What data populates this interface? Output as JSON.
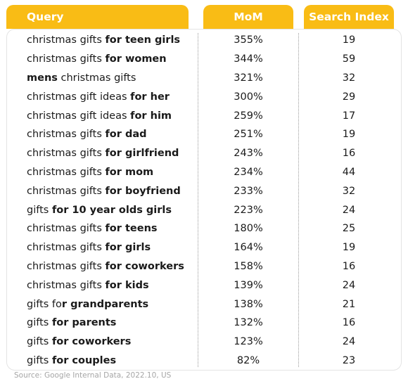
{
  "chart_data": {
    "type": "table",
    "columns": [
      "Query",
      "MoM",
      "Search Index"
    ],
    "rows": [
      {
        "query": [
          {
            "t": "christmas gifts ",
            "b": false
          },
          {
            "t": "for teen girls",
            "b": true
          }
        ],
        "mom": "355%",
        "index": "19"
      },
      {
        "query": [
          {
            "t": "christmas gifts ",
            "b": false
          },
          {
            "t": "for women",
            "b": true
          }
        ],
        "mom": "344%",
        "index": "59"
      },
      {
        "query": [
          {
            "t": "mens",
            "b": true
          },
          {
            "t": " christmas gifts",
            "b": false
          }
        ],
        "mom": "321%",
        "index": "32"
      },
      {
        "query": [
          {
            "t": "christmas gift ideas ",
            "b": false
          },
          {
            "t": "for her",
            "b": true
          }
        ],
        "mom": "300%",
        "index": "29"
      },
      {
        "query": [
          {
            "t": "christmas gift ideas ",
            "b": false
          },
          {
            "t": "for him",
            "b": true
          }
        ],
        "mom": "259%",
        "index": "17"
      },
      {
        "query": [
          {
            "t": "christmas gifts ",
            "b": false
          },
          {
            "t": "for dad",
            "b": true
          }
        ],
        "mom": "251%",
        "index": "19"
      },
      {
        "query": [
          {
            "t": "christmas gifts ",
            "b": false
          },
          {
            "t": "for girlfriend",
            "b": true
          }
        ],
        "mom": "243%",
        "index": "16"
      },
      {
        "query": [
          {
            "t": "christmas gifts ",
            "b": false
          },
          {
            "t": "for mom",
            "b": true
          }
        ],
        "mom": "234%",
        "index": "44"
      },
      {
        "query": [
          {
            "t": "christmas gifts ",
            "b": false
          },
          {
            "t": "for boyfriend",
            "b": true
          }
        ],
        "mom": "233%",
        "index": "32"
      },
      {
        "query": [
          {
            "t": "gifts ",
            "b": false
          },
          {
            "t": "for 10 year olds girls",
            "b": true
          }
        ],
        "mom": "223%",
        "index": "24"
      },
      {
        "query": [
          {
            "t": "christmas gifts ",
            "b": false
          },
          {
            "t": "for teens",
            "b": true
          }
        ],
        "mom": "180%",
        "index": "25"
      },
      {
        "query": [
          {
            "t": "christmas gifts ",
            "b": false
          },
          {
            "t": "for girls",
            "b": true
          }
        ],
        "mom": "164%",
        "index": "19"
      },
      {
        "query": [
          {
            "t": "christmas gifts ",
            "b": false
          },
          {
            "t": "for coworkers",
            "b": true
          }
        ],
        "mom": "158%",
        "index": "16"
      },
      {
        "query": [
          {
            "t": "christmas gifts ",
            "b": false
          },
          {
            "t": "for kids",
            "b": true
          }
        ],
        "mom": "139%",
        "index": "24"
      },
      {
        "query": [
          {
            "t": "gifts fo",
            "b": false
          },
          {
            "t": "r grandparents",
            "b": true
          }
        ],
        "mom": "138%",
        "index": "21"
      },
      {
        "query": [
          {
            "t": "gifts ",
            "b": false
          },
          {
            "t": "for parents",
            "b": true
          }
        ],
        "mom": "132%",
        "index": "16"
      },
      {
        "query": [
          {
            "t": "gifts ",
            "b": false
          },
          {
            "t": "for coworkers",
            "b": true
          }
        ],
        "mom": "123%",
        "index": "24"
      },
      {
        "query": [
          {
            "t": "gifts ",
            "b": false
          },
          {
            "t": "for couples",
            "b": true
          }
        ],
        "mom": "82%",
        "index": "23"
      }
    ],
    "source": "Source: Google Internal Data, 2022.10, US"
  },
  "colors": {
    "header": "#f9bc15",
    "header_text": "#ffffff",
    "source_text": "#a6a6a6"
  }
}
